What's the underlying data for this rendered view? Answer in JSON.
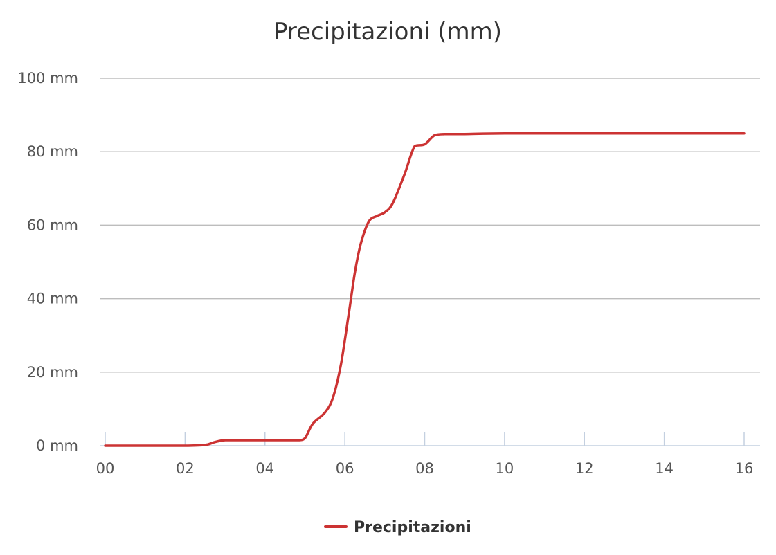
{
  "chart_data": {
    "type": "line",
    "title": "Precipitazioni (mm)",
    "xlabel": "",
    "ylabel": "",
    "x_ticks": [
      "00",
      "02",
      "04",
      "06",
      "08",
      "10",
      "12",
      "14",
      "16"
    ],
    "y_ticks": [
      "0 mm",
      "20 mm",
      "40 mm",
      "60 mm",
      "80 mm",
      "100 mm"
    ],
    "ylim": [
      0,
      100
    ],
    "xlim": [
      0,
      16
    ],
    "grid": true,
    "legend_position": "bottom-center",
    "series": [
      {
        "name": "Precipitazioni",
        "color": "#cc3333",
        "x": [
          0,
          1,
          2,
          2.5,
          2.75,
          3,
          3.5,
          4,
          4.5,
          4.85,
          5,
          5.2,
          5.5,
          5.7,
          5.9,
          6.1,
          6.25,
          6.4,
          6.6,
          6.8,
          7,
          7.2,
          7.5,
          7.75,
          8,
          8.25,
          8.5,
          9,
          10,
          12,
          14,
          16
        ],
        "values": [
          0,
          0,
          0,
          0.2,
          1,
          1.5,
          1.5,
          1.5,
          1.5,
          1.5,
          2,
          6,
          9,
          13,
          22,
          36,
          47,
          55,
          61,
          62.5,
          63.5,
          66,
          74,
          81.5,
          82,
          84.5,
          84.8,
          84.8,
          85,
          85,
          85,
          85
        ]
      }
    ]
  }
}
